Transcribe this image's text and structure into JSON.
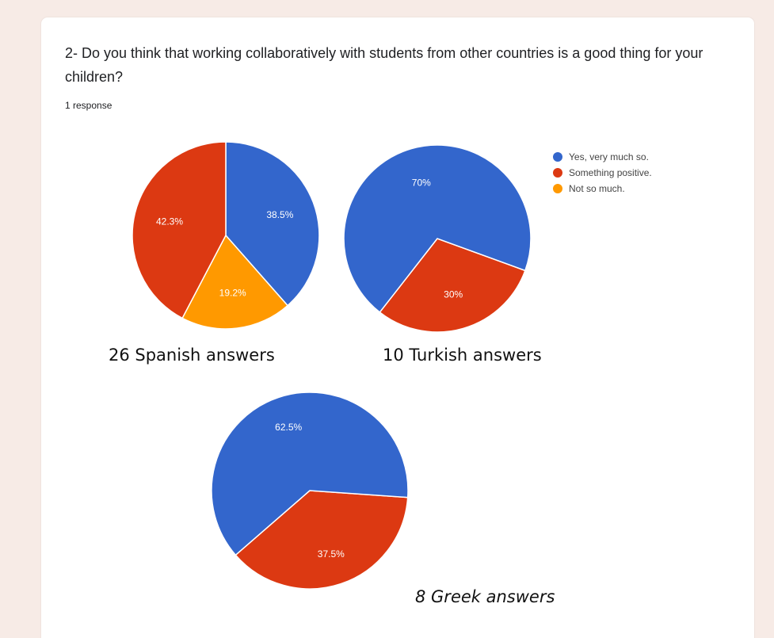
{
  "form": {
    "question": "2- Do you think that working collaboratively with students from other countries is a good thing for your children?",
    "responses": "1 response"
  },
  "colors": {
    "yes": "#3366cc",
    "positive": "#dc3912",
    "not_much": "#ff9900",
    "background": "#f7ebe6",
    "card": "#ffffff"
  },
  "legend": [
    {
      "label": "Yes, very much so.",
      "color": "#3366cc"
    },
    {
      "label": "Something positive.",
      "color": "#dc3912"
    },
    {
      "label": "Not so much.",
      "color": "#ff9900"
    }
  ],
  "chart_data": [
    {
      "type": "pie",
      "caption": "26 Spanish answers",
      "labels": [
        "Yes, very much so.",
        "Something positive.",
        "Not so much."
      ],
      "values": [
        38.5,
        42.3,
        19.2
      ],
      "value_labels": [
        "38.5%",
        "42.3%",
        "19.2%"
      ],
      "legend": "right"
    },
    {
      "type": "pie",
      "caption": "10 Turkish answers",
      "labels": [
        "Yes, very much so.",
        "Something positive."
      ],
      "values": [
        70,
        30
      ],
      "value_labels": [
        "70%",
        "30%"
      ],
      "legend": "right"
    },
    {
      "type": "pie",
      "caption": "8 Greek answers",
      "labels": [
        "Yes, very much so.",
        "Something positive."
      ],
      "values": [
        62.5,
        37.5
      ],
      "value_labels": [
        "62.5%",
        "37.5%"
      ],
      "legend": "none"
    }
  ]
}
